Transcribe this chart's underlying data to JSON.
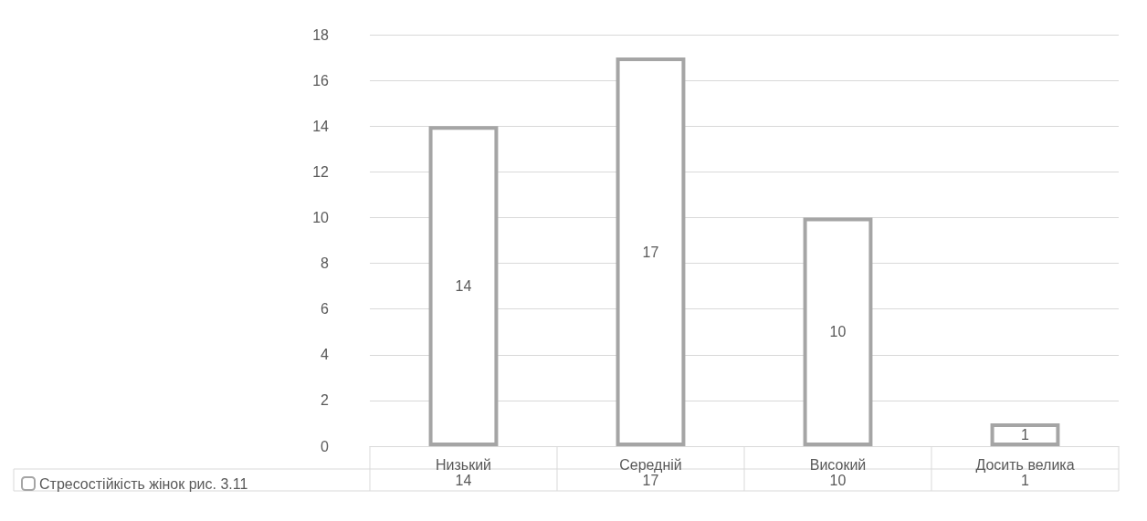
{
  "chart_data": {
    "type": "bar",
    "categories": [
      "Низький",
      "Середній",
      "Високий",
      "Досить велика"
    ],
    "series": [
      {
        "name": "Стресостійкість жінок рис. 3.11",
        "color": "#a5a5a5",
        "values": [
          14,
          17,
          10,
          1
        ],
        "value_labels": [
          "14",
          "17",
          "10",
          "1"
        ]
      }
    ],
    "ylim": [
      0,
      18
    ],
    "yticks": [
      0,
      2,
      4,
      6,
      8,
      10,
      12,
      14,
      16,
      18
    ],
    "annotations": [
      "14",
      "17",
      "10",
      "1"
    ],
    "grid": "y",
    "legend": "bottom left",
    "data_labels": true
  }
}
